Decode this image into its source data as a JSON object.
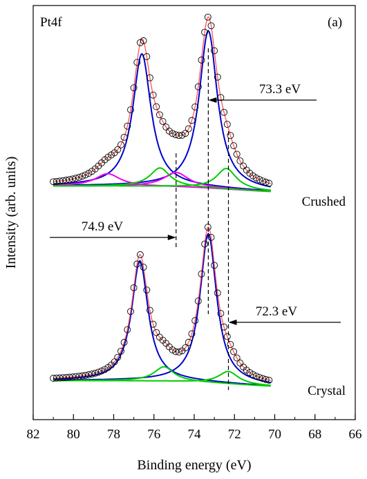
{
  "chart_data": {
    "type": "line",
    "panel_label": "(a)",
    "region_label": "Pt4f",
    "xlabel": "Binding energy (eV)",
    "ylabel": "Intensity (arb. units)",
    "xlim": [
      82,
      66
    ],
    "x_reversed": true,
    "x_ticks": [
      82,
      80,
      78,
      76,
      74,
      72,
      70,
      68,
      66
    ],
    "y_ticks_shown": false,
    "grid": false,
    "spectra": [
      {
        "label": "Crushed",
        "baseline": 0.73,
        "components": [
          {
            "color": "#0000cc",
            "center": 76.6,
            "width": 0.55,
            "height": 0.64
          },
          {
            "color": "#0000cc",
            "center": 73.3,
            "width": 0.55,
            "height": 0.76
          },
          {
            "color": "#ee00ee",
            "center": 78.3,
            "width": 0.75,
            "height": 0.06
          },
          {
            "color": "#ee00ee",
            "center": 74.9,
            "width": 0.75,
            "height": 0.07
          },
          {
            "color": "#00cc00",
            "center": 75.7,
            "width": 0.6,
            "height": 0.09
          },
          {
            "color": "#00cc00",
            "center": 72.4,
            "width": 0.6,
            "height": 0.1
          }
        ]
      },
      {
        "label": "Crystal",
        "baseline": 0.0,
        "components": [
          {
            "color": "#0000cc",
            "center": 76.7,
            "width": 0.5,
            "height": 0.58
          },
          {
            "color": "#0000cc",
            "center": 73.3,
            "width": 0.5,
            "height": 0.72
          },
          {
            "color": "#00cc00",
            "center": 75.5,
            "width": 0.6,
            "height": 0.07
          },
          {
            "color": "#00cc00",
            "center": 72.3,
            "width": 0.6,
            "height": 0.06
          }
        ]
      }
    ],
    "annotations": [
      {
        "text": "73.3 eV",
        "x_energy": 73.3,
        "arrow_from": "right"
      },
      {
        "text": "74.9 eV",
        "x_energy": 74.9,
        "arrow_from": "left"
      },
      {
        "text": "72.3 eV",
        "x_energy": 72.3,
        "arrow_from": "right"
      }
    ],
    "colors": {
      "fit_envelope": "#ff5555",
      "main_component": "#0000cc",
      "secondary_component": "#ee00ee",
      "minor_component": "#00cc00",
      "data_marker": "#000000"
    }
  }
}
